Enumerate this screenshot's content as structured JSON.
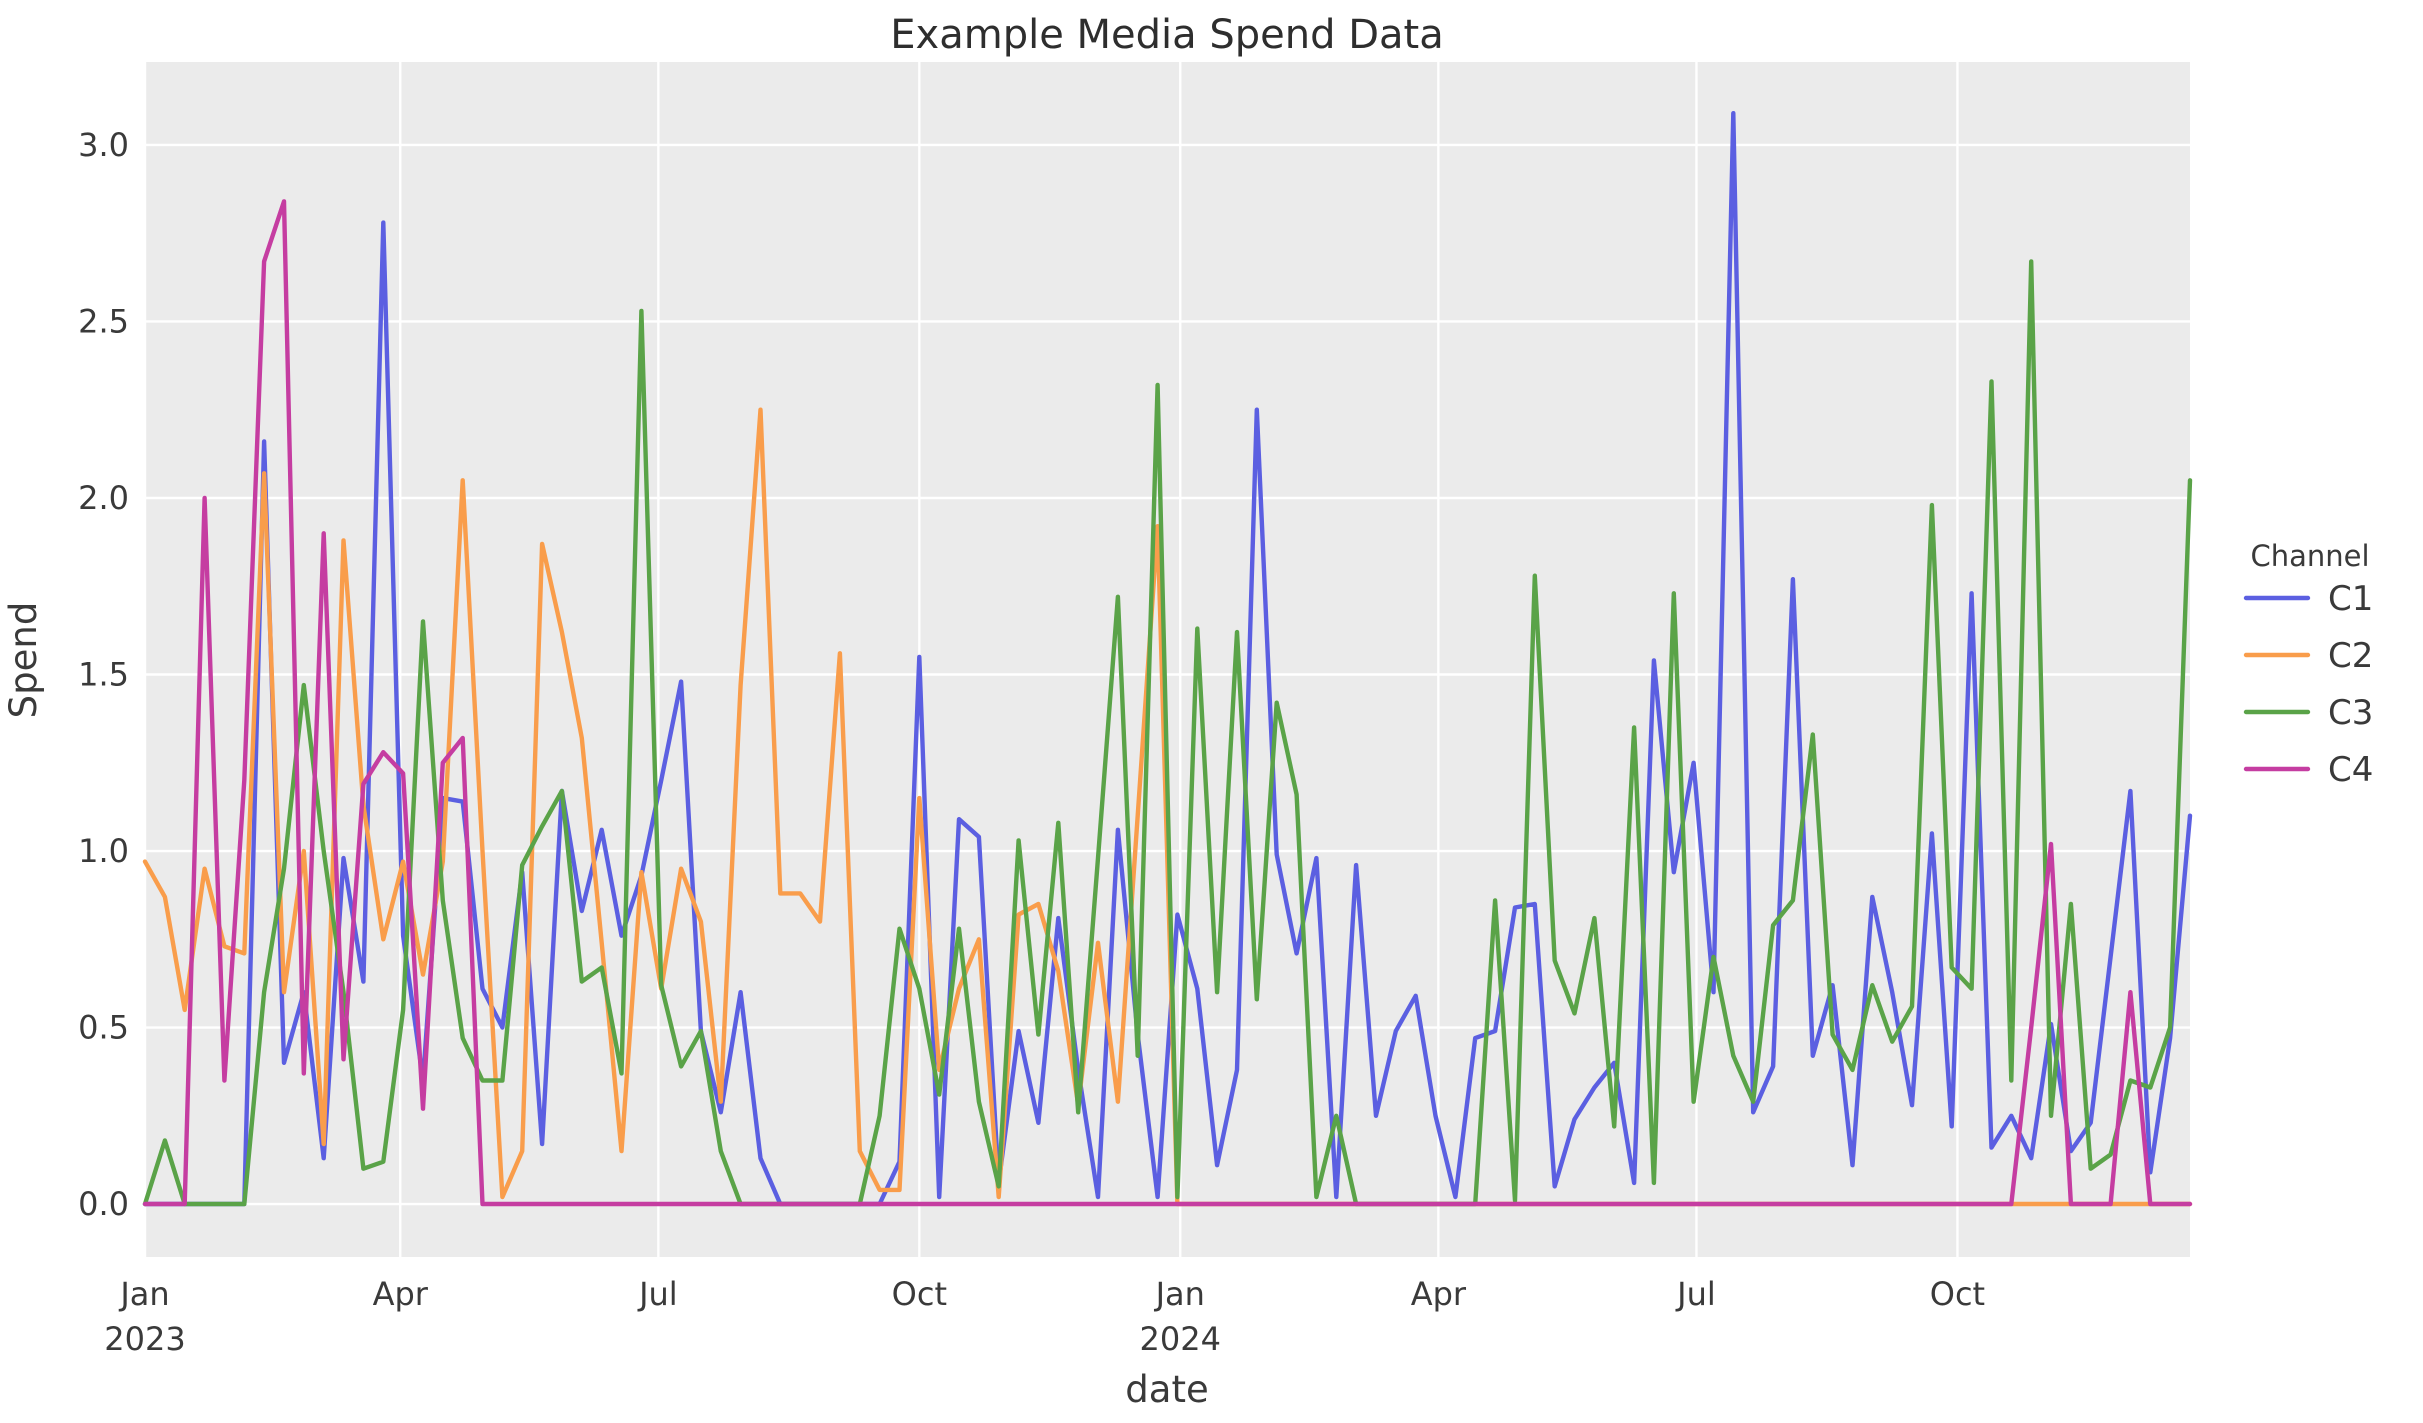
{
  "chart_data": {
    "type": "line",
    "title": "Example Media Spend Data",
    "xlabel": "date",
    "ylabel": "Spend",
    "legend_title": "Channel",
    "grid": true,
    "legend_position": "right",
    "plot_bg_color": "#ebebeb",
    "grid_color": "#ffffff",
    "text_color": "#3a3a3a",
    "x_start_date": "2023-01-01",
    "x_interval_days": 7,
    "n_points": 104,
    "x_total_days": 721,
    "ylim": [
      -0.15,
      3.235
    ],
    "y_ticks": [
      0.0,
      0.5,
      1.0,
      1.5,
      2.0,
      2.5,
      3.0
    ],
    "x_ticks": [
      {
        "label": "Jan",
        "sublabel": "2023",
        "day": 0
      },
      {
        "label": "Apr",
        "sublabel": "",
        "day": 90
      },
      {
        "label": "Jul",
        "sublabel": "",
        "day": 181
      },
      {
        "label": "Oct",
        "sublabel": "",
        "day": 273
      },
      {
        "label": "Jan",
        "sublabel": "2024",
        "day": 365
      },
      {
        "label": "Apr",
        "sublabel": "",
        "day": 456
      },
      {
        "label": "Jul",
        "sublabel": "",
        "day": 547
      },
      {
        "label": "Oct",
        "sublabel": "",
        "day": 639
      }
    ],
    "series": [
      {
        "name": "C1",
        "color": "#5b5fe1",
        "values": [
          0,
          0,
          0,
          0,
          0,
          0,
          2.16,
          0.4,
          0.6,
          0.13,
          0.98,
          0.63,
          2.78,
          0.76,
          0.35,
          1.15,
          1.14,
          0.61,
          0.5,
          0.94,
          0.17,
          1.17,
          0.83,
          1.06,
          0.76,
          0.93,
          1.2,
          1.48,
          0.49,
          0.26,
          0.6,
          0.13,
          0,
          0,
          0,
          0,
          0,
          0,
          0.12,
          1.55,
          0.02,
          1.09,
          1.04,
          0.06,
          0.49,
          0.23,
          0.81,
          0.38,
          0.02,
          1.06,
          0.48,
          0.02,
          0.82,
          0.61,
          0.11,
          0.38,
          2.25,
          0.99,
          0.71,
          0.98,
          0.02,
          0.96,
          0.25,
          0.49,
          0.59,
          0.25,
          0.02,
          0.47,
          0.49,
          0.84,
          0.85,
          0.05,
          0.24,
          0.33,
          0.4,
          0.06,
          1.54,
          0.94,
          1.25,
          0.6,
          3.09,
          0.26,
          0.39,
          1.77,
          0.42,
          0.62,
          0.11,
          0.87,
          0.6,
          0.28,
          1.05,
          0.22,
          1.73,
          0.16,
          0.25,
          0.13,
          0.51,
          0.15,
          0.23,
          0.7,
          1.17,
          0.09,
          0.47,
          1.1
        ]
      },
      {
        "name": "C2",
        "color": "#f99d4b",
        "values": [
          0.97,
          0.87,
          0.55,
          0.95,
          0.73,
          0.71,
          2.07,
          0.6,
          1.0,
          0.17,
          1.88,
          1.13,
          0.75,
          0.97,
          0.65,
          0.97,
          2.05,
          1.0,
          0.02,
          0.15,
          1.87,
          1.62,
          1.32,
          0.74,
          0.15,
          0.94,
          0.61,
          0.95,
          0.8,
          0.29,
          1.47,
          2.25,
          0.88,
          0.88,
          0.8,
          1.56,
          0.15,
          0.04,
          0.04,
          1.15,
          0.38,
          0.61,
          0.75,
          0.02,
          0.82,
          0.85,
          0.66,
          0.28,
          0.74,
          0.29,
          1.1,
          1.92,
          0,
          0,
          0,
          0,
          0,
          0,
          0,
          0,
          0,
          0,
          0,
          0,
          0,
          0,
          0,
          0,
          0,
          0,
          0,
          0,
          0,
          0,
          0,
          0,
          0,
          0,
          0,
          0,
          0,
          0,
          0,
          0,
          0,
          0,
          0,
          0,
          0,
          0,
          0,
          0,
          0,
          0,
          0,
          0,
          0,
          0,
          0,
          0,
          0,
          0,
          0,
          0
        ]
      },
      {
        "name": "C3",
        "color": "#5aa348",
        "values": [
          0,
          0.18,
          0,
          0,
          0,
          0,
          0.6,
          0.95,
          1.47,
          1.0,
          0.6,
          0.1,
          0.12,
          0.55,
          1.65,
          0.86,
          0.47,
          0.35,
          0.35,
          0.96,
          1.07,
          1.17,
          0.63,
          0.67,
          0.37,
          2.53,
          0.62,
          0.39,
          0.49,
          0.15,
          0,
          0,
          0,
          0,
          0,
          0,
          0,
          0.25,
          0.78,
          0.61,
          0.31,
          0.78,
          0.29,
          0.05,
          1.03,
          0.48,
          1.08,
          0.26,
          0.98,
          1.72,
          0.42,
          2.32,
          0.02,
          1.63,
          0.6,
          1.62,
          0.58,
          1.42,
          1.16,
          0.02,
          0.25,
          0,
          0,
          0,
          0,
          0,
          0,
          0,
          0.86,
          0.01,
          1.78,
          0.69,
          0.54,
          0.81,
          0.22,
          1.35,
          0.06,
          1.73,
          0.29,
          0.7,
          0.42,
          0.29,
          0.79,
          0.86,
          1.33,
          0.48,
          0.38,
          0.62,
          0.46,
          0.56,
          1.98,
          0.67,
          0.61,
          2.33,
          0.35,
          2.67,
          0.25,
          0.85,
          0.1,
          0.14,
          0.35,
          0.33,
          0.5,
          2.05
        ]
      },
      {
        "name": "C4",
        "color": "#c53da1",
        "values": [
          0,
          0,
          0,
          2.0,
          0.35,
          1.2,
          2.67,
          2.84,
          0.37,
          1.9,
          0.41,
          1.19,
          1.28,
          1.22,
          0.27,
          1.25,
          1.32,
          0,
          0,
          0,
          0,
          0,
          0,
          0,
          0,
          0,
          0,
          0,
          0,
          0,
          0,
          0,
          0,
          0,
          0,
          0,
          0,
          0,
          0,
          0,
          0,
          0,
          0,
          0,
          0,
          0,
          0,
          0,
          0,
          0,
          0,
          0,
          0,
          0,
          0,
          0,
          0,
          0,
          0,
          0,
          0,
          0,
          0,
          0,
          0,
          0,
          0,
          0,
          0,
          0,
          0,
          0,
          0,
          0,
          0,
          0,
          0,
          0,
          0,
          0,
          0,
          0,
          0,
          0,
          0,
          0,
          0,
          0,
          0,
          0,
          0,
          0,
          0,
          0,
          0,
          0.5,
          1.02,
          0,
          0,
          0,
          0.6,
          0,
          0,
          0
        ]
      }
    ]
  }
}
